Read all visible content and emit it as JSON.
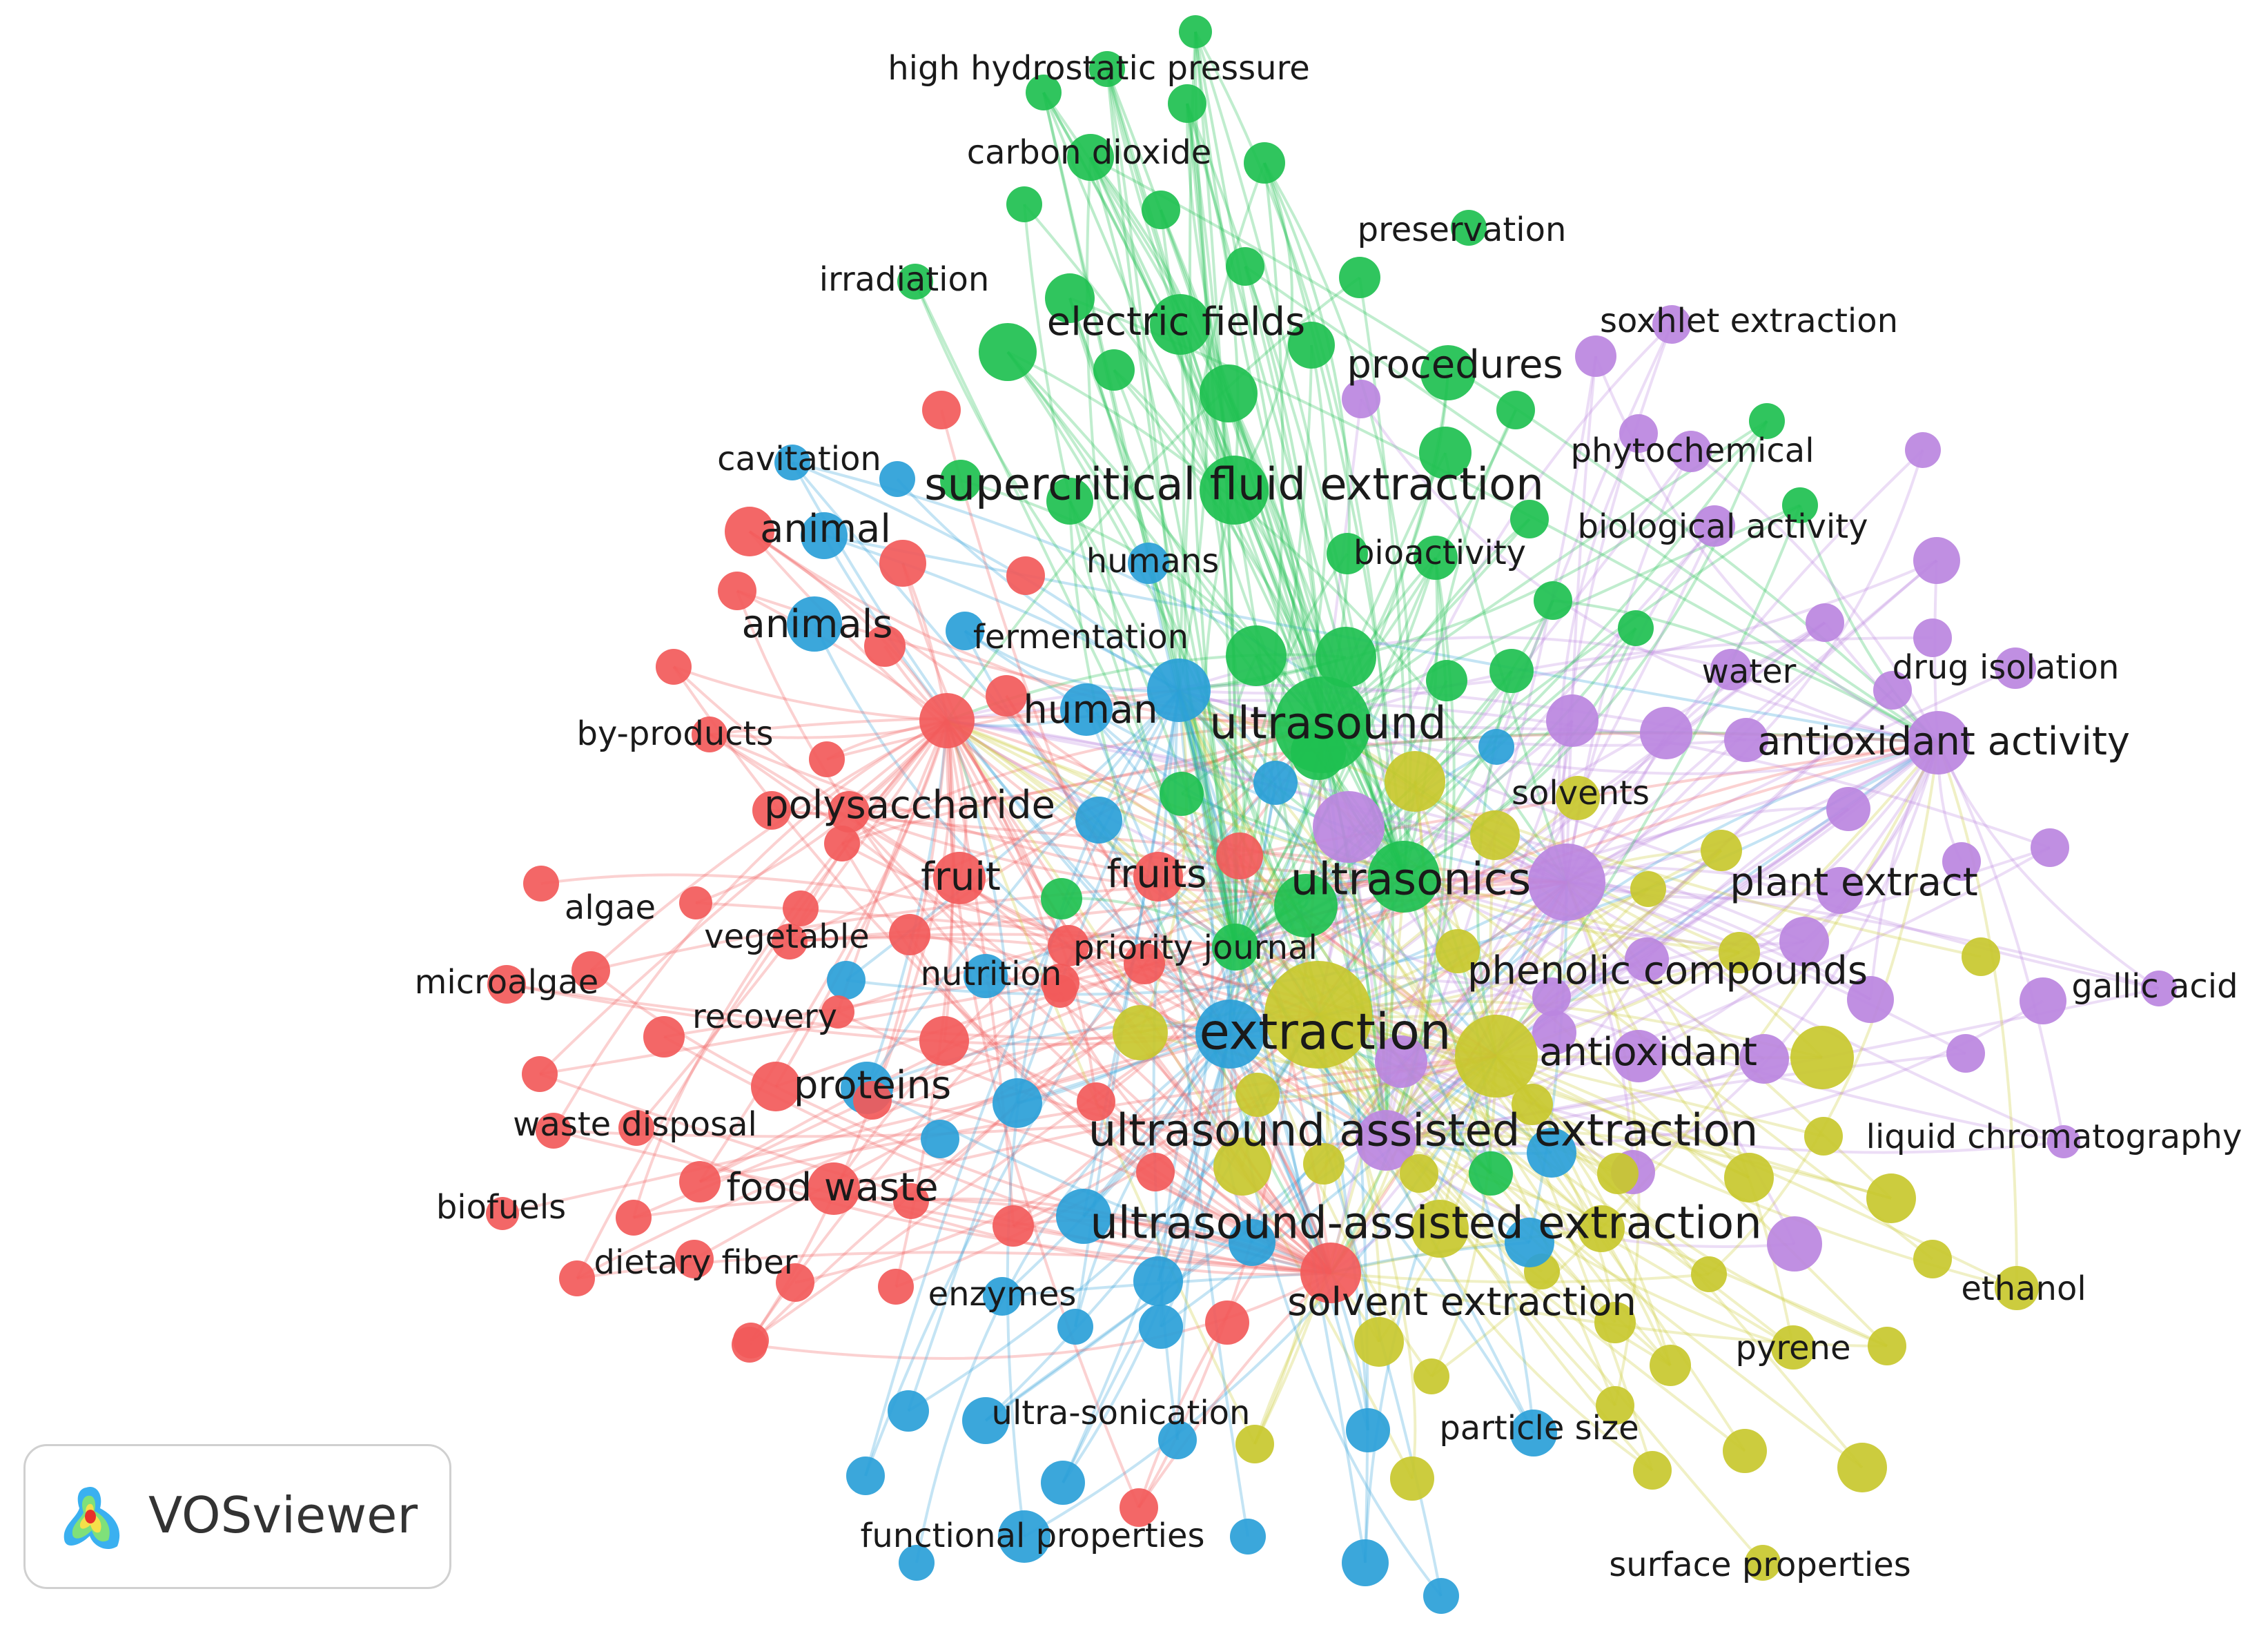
{
  "colors": {
    "red": "#f25a5a",
    "green": "#1ec050",
    "blue": "#2a9fd8",
    "yellow": "#c8c82e",
    "purple": "#bb86e0"
  },
  "labels": [
    {
      "text": "high hydrostatic pressure",
      "cluster": "green",
      "weight": "small"
    },
    {
      "text": "carbon dioxide",
      "cluster": "green",
      "weight": "small"
    },
    {
      "text": "preservation",
      "cluster": "green",
      "weight": "small"
    },
    {
      "text": "irradiation",
      "cluster": "green",
      "weight": "small"
    },
    {
      "text": "electric fields",
      "cluster": "green",
      "weight": "medium"
    },
    {
      "text": "soxhlet extraction",
      "cluster": "purple",
      "weight": "small"
    },
    {
      "text": "procedures",
      "cluster": "green",
      "weight": "medium"
    },
    {
      "text": "phytochemical",
      "cluster": "purple",
      "weight": "small"
    },
    {
      "text": "cavitation",
      "cluster": "blue",
      "weight": "small"
    },
    {
      "text": "supercritical fluid extraction",
      "cluster": "green",
      "weight": "large"
    },
    {
      "text": "biological activity",
      "cluster": "purple",
      "weight": "small"
    },
    {
      "text": "animal",
      "cluster": "blue",
      "weight": "medium"
    },
    {
      "text": "humans",
      "cluster": "blue",
      "weight": "small"
    },
    {
      "text": "bioactivity",
      "cluster": "green",
      "weight": "small"
    },
    {
      "text": "animals",
      "cluster": "blue",
      "weight": "medium"
    },
    {
      "text": "fermentation",
      "cluster": "blue",
      "weight": "small"
    },
    {
      "text": "water",
      "cluster": "purple",
      "weight": "small"
    },
    {
      "text": "drug isolation",
      "cluster": "purple",
      "weight": "small"
    },
    {
      "text": "human",
      "cluster": "blue",
      "weight": "medium"
    },
    {
      "text": "ultrasound",
      "cluster": "green",
      "weight": "large"
    },
    {
      "text": "by-products",
      "cluster": "red",
      "weight": "small"
    },
    {
      "text": "antioxidant activity",
      "cluster": "purple",
      "weight": "medium"
    },
    {
      "text": "solvents",
      "cluster": "yellow",
      "weight": "small"
    },
    {
      "text": "polysaccharide",
      "cluster": "red",
      "weight": "medium"
    },
    {
      "text": "fruit",
      "cluster": "red",
      "weight": "medium"
    },
    {
      "text": "fruits",
      "cluster": "red",
      "weight": "medium"
    },
    {
      "text": "ultrasonics",
      "cluster": "green",
      "weight": "large"
    },
    {
      "text": "plant extract",
      "cluster": "purple",
      "weight": "medium"
    },
    {
      "text": "algae",
      "cluster": "red",
      "weight": "small"
    },
    {
      "text": "vegetable",
      "cluster": "red",
      "weight": "small"
    },
    {
      "text": "priority journal",
      "cluster": "green",
      "weight": "small"
    },
    {
      "text": "microalgae",
      "cluster": "red",
      "weight": "small"
    },
    {
      "text": "nutrition",
      "cluster": "blue",
      "weight": "small"
    },
    {
      "text": "phenolic compounds",
      "cluster": "yellow",
      "weight": "medium"
    },
    {
      "text": "gallic acid",
      "cluster": "purple",
      "weight": "small"
    },
    {
      "text": "recovery",
      "cluster": "red",
      "weight": "small"
    },
    {
      "text": "extraction",
      "cluster": "blue",
      "weight": "xlarge"
    },
    {
      "text": "antioxidant",
      "cluster": "purple",
      "weight": "medium"
    },
    {
      "text": "proteins",
      "cluster": "red",
      "weight": "medium"
    },
    {
      "text": "waste disposal",
      "cluster": "red",
      "weight": "small"
    },
    {
      "text": "ultrasound assisted extraction",
      "cluster": "purple",
      "weight": "large"
    },
    {
      "text": "liquid chromatography",
      "cluster": "purple",
      "weight": "small"
    },
    {
      "text": "food waste",
      "cluster": "red",
      "weight": "medium"
    },
    {
      "text": "biofuels",
      "cluster": "red",
      "weight": "small"
    },
    {
      "text": "ultrasound-assisted extraction",
      "cluster": "yellow",
      "weight": "large"
    },
    {
      "text": "dietary fiber",
      "cluster": "red",
      "weight": "small"
    },
    {
      "text": "ethanol",
      "cluster": "yellow",
      "weight": "small"
    },
    {
      "text": "enzymes",
      "cluster": "blue",
      "weight": "small"
    },
    {
      "text": "solvent extraction",
      "cluster": "yellow",
      "weight": "medium"
    },
    {
      "text": "pyrene",
      "cluster": "yellow",
      "weight": "small"
    },
    {
      "text": "ultra-sonication",
      "cluster": "blue",
      "weight": "small"
    },
    {
      "text": "particle size",
      "cluster": "blue",
      "weight": "small"
    },
    {
      "text": "functional properties",
      "cluster": "blue",
      "weight": "small"
    },
    {
      "text": "surface properties",
      "cluster": "yellow",
      "weight": "small"
    }
  ],
  "badge": {
    "text": "VOSviewer",
    "logo_icon": "vosviewer-heatmap-logo-icon"
  }
}
